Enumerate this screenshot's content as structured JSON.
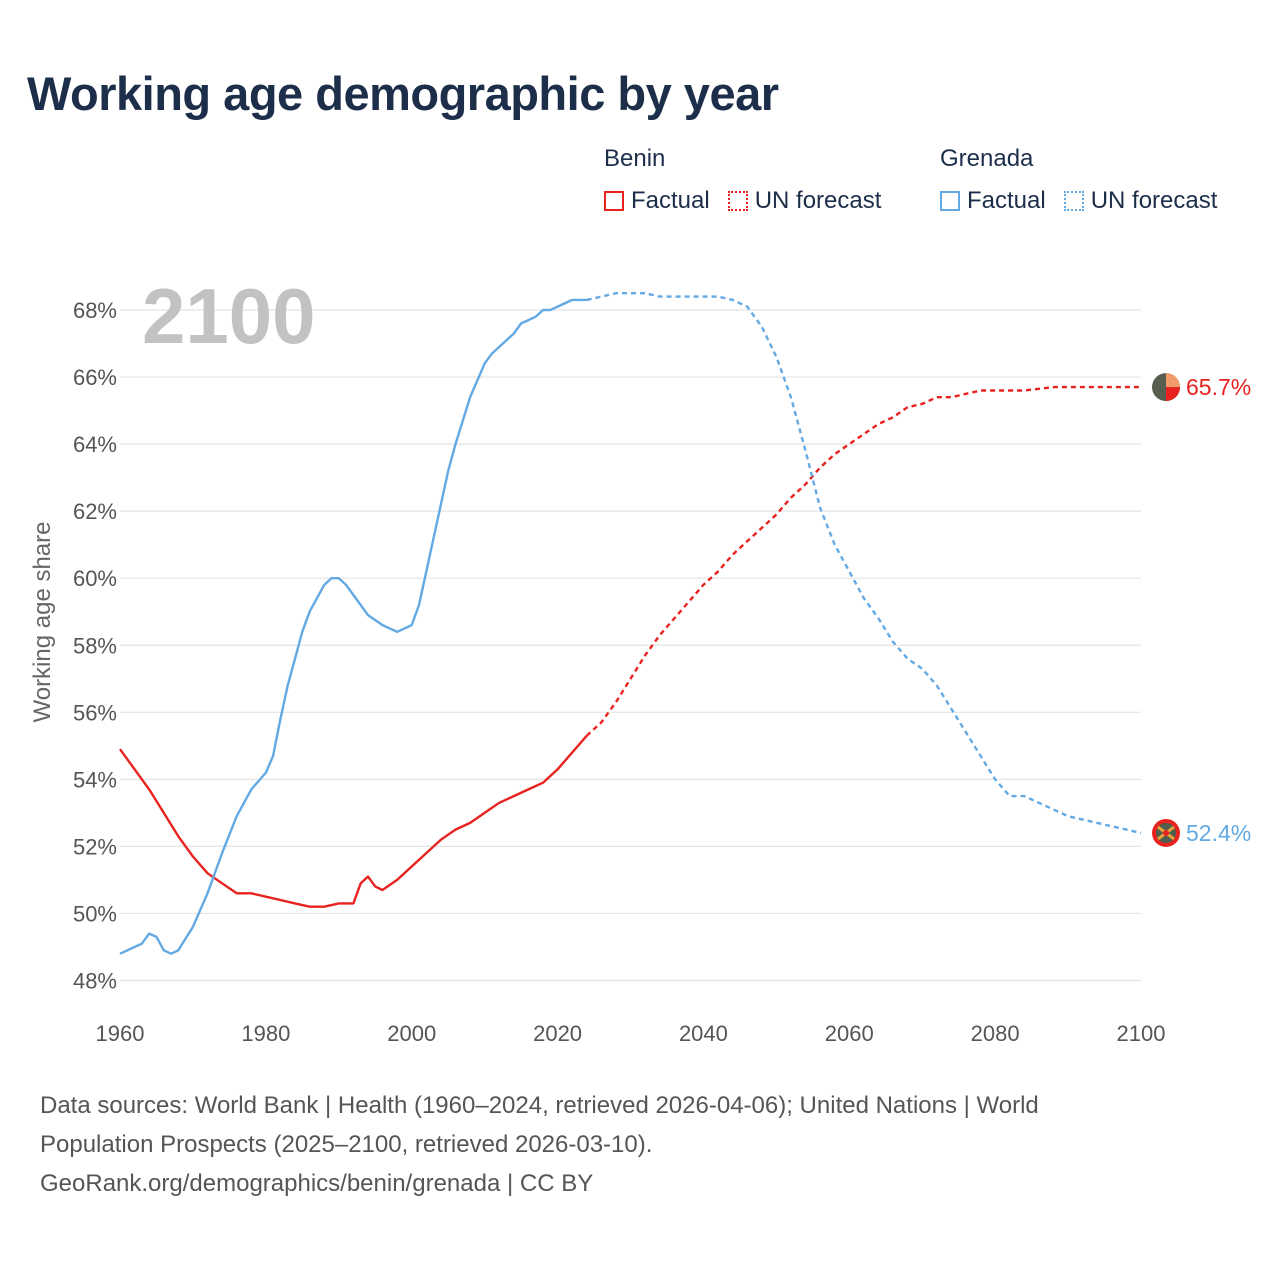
{
  "title": "Working age demographic by year",
  "legend": {
    "groups": [
      {
        "country": "Benin",
        "color": "#e8231f",
        "factual_label": "Factual",
        "forecast_label": "UN forecast"
      },
      {
        "country": "Grenada",
        "color": "#63a9e3",
        "factual_label": "Factual",
        "forecast_label": "UN forecast"
      }
    ]
  },
  "chart_data": {
    "type": "line",
    "title": "Working age demographic by year",
    "xlabel": "",
    "ylabel": "Working age share",
    "year_label": "2100",
    "xlim": [
      1960,
      2100
    ],
    "ylim": [
      47.5,
      68.8
    ],
    "x_ticks": [
      1960,
      1980,
      2000,
      2020,
      2040,
      2060,
      2080,
      2100
    ],
    "y_ticks": [
      48,
      50,
      52,
      54,
      56,
      58,
      60,
      62,
      64,
      66,
      68
    ],
    "y_tick_suffix": "%",
    "grid": true,
    "series": [
      {
        "name": "Benin",
        "color": "#e8231f",
        "end_label": "65.7%",
        "factual": [
          [
            1960,
            54.9
          ],
          [
            1962,
            54.3
          ],
          [
            1964,
            53.7
          ],
          [
            1966,
            53.0
          ],
          [
            1968,
            52.3
          ],
          [
            1970,
            51.7
          ],
          [
            1972,
            51.2
          ],
          [
            1974,
            50.9
          ],
          [
            1976,
            50.6
          ],
          [
            1978,
            50.6
          ],
          [
            1980,
            50.5
          ],
          [
            1982,
            50.4
          ],
          [
            1984,
            50.3
          ],
          [
            1986,
            50.2
          ],
          [
            1988,
            50.2
          ],
          [
            1990,
            50.3
          ],
          [
            1992,
            50.3
          ],
          [
            1993,
            50.9
          ],
          [
            1994,
            51.1
          ],
          [
            1995,
            50.8
          ],
          [
            1996,
            50.7
          ],
          [
            1998,
            51.0
          ],
          [
            2000,
            51.4
          ],
          [
            2002,
            51.8
          ],
          [
            2004,
            52.2
          ],
          [
            2006,
            52.5
          ],
          [
            2008,
            52.7
          ],
          [
            2010,
            53.0
          ],
          [
            2012,
            53.3
          ],
          [
            2014,
            53.5
          ],
          [
            2016,
            53.7
          ],
          [
            2018,
            53.9
          ],
          [
            2020,
            54.3
          ],
          [
            2022,
            54.8
          ],
          [
            2024,
            55.3
          ]
        ],
        "forecast": [
          [
            2024,
            55.3
          ],
          [
            2026,
            55.7
          ],
          [
            2028,
            56.3
          ],
          [
            2030,
            57.0
          ],
          [
            2032,
            57.7
          ],
          [
            2034,
            58.3
          ],
          [
            2036,
            58.8
          ],
          [
            2038,
            59.3
          ],
          [
            2040,
            59.8
          ],
          [
            2042,
            60.2
          ],
          [
            2044,
            60.7
          ],
          [
            2046,
            61.1
          ],
          [
            2048,
            61.5
          ],
          [
            2050,
            61.9
          ],
          [
            2052,
            62.4
          ],
          [
            2054,
            62.8
          ],
          [
            2056,
            63.3
          ],
          [
            2058,
            63.7
          ],
          [
            2060,
            64.0
          ],
          [
            2062,
            64.3
          ],
          [
            2064,
            64.6
          ],
          [
            2066,
            64.8
          ],
          [
            2068,
            65.1
          ],
          [
            2070,
            65.2
          ],
          [
            2072,
            65.4
          ],
          [
            2074,
            65.4
          ],
          [
            2076,
            65.5
          ],
          [
            2078,
            65.6
          ],
          [
            2080,
            65.6
          ],
          [
            2084,
            65.6
          ],
          [
            2088,
            65.7
          ],
          [
            2092,
            65.7
          ],
          [
            2096,
            65.7
          ],
          [
            2100,
            65.7
          ]
        ]
      },
      {
        "name": "Grenada",
        "color": "#63a9e3",
        "end_label": "52.4%",
        "factual": [
          [
            1960,
            48.8
          ],
          [
            1963,
            49.1
          ],
          [
            1964,
            49.4
          ],
          [
            1965,
            49.3
          ],
          [
            1966,
            48.9
          ],
          [
            1967,
            48.8
          ],
          [
            1968,
            48.9
          ],
          [
            1970,
            49.6
          ],
          [
            1972,
            50.6
          ],
          [
            1974,
            51.8
          ],
          [
            1976,
            52.9
          ],
          [
            1978,
            53.7
          ],
          [
            1980,
            54.2
          ],
          [
            1981,
            54.7
          ],
          [
            1982,
            55.8
          ],
          [
            1983,
            56.8
          ],
          [
            1984,
            57.6
          ],
          [
            1985,
            58.4
          ],
          [
            1986,
            59.0
          ],
          [
            1987,
            59.4
          ],
          [
            1988,
            59.8
          ],
          [
            1989,
            60.0
          ],
          [
            1990,
            60.0
          ],
          [
            1991,
            59.8
          ],
          [
            1992,
            59.5
          ],
          [
            1994,
            58.9
          ],
          [
            1996,
            58.6
          ],
          [
            1998,
            58.4
          ],
          [
            2000,
            58.6
          ],
          [
            2001,
            59.2
          ],
          [
            2002,
            60.2
          ],
          [
            2003,
            61.2
          ],
          [
            2004,
            62.2
          ],
          [
            2005,
            63.2
          ],
          [
            2006,
            64.0
          ],
          [
            2008,
            65.4
          ],
          [
            2010,
            66.4
          ],
          [
            2011,
            66.7
          ],
          [
            2012,
            66.9
          ],
          [
            2014,
            67.3
          ],
          [
            2015,
            67.6
          ],
          [
            2016,
            67.7
          ],
          [
            2017,
            67.8
          ],
          [
            2018,
            68.0
          ],
          [
            2019,
            68.0
          ],
          [
            2020,
            68.1
          ],
          [
            2022,
            68.3
          ],
          [
            2024,
            68.3
          ]
        ],
        "forecast": [
          [
            2024,
            68.3
          ],
          [
            2026,
            68.4
          ],
          [
            2028,
            68.5
          ],
          [
            2030,
            68.5
          ],
          [
            2032,
            68.5
          ],
          [
            2034,
            68.4
          ],
          [
            2036,
            68.4
          ],
          [
            2038,
            68.4
          ],
          [
            2040,
            68.4
          ],
          [
            2042,
            68.4
          ],
          [
            2044,
            68.3
          ],
          [
            2046,
            68.1
          ],
          [
            2048,
            67.5
          ],
          [
            2050,
            66.6
          ],
          [
            2052,
            65.4
          ],
          [
            2054,
            63.8
          ],
          [
            2056,
            62.1
          ],
          [
            2058,
            61.0
          ],
          [
            2060,
            60.2
          ],
          [
            2062,
            59.4
          ],
          [
            2064,
            58.8
          ],
          [
            2066,
            58.1
          ],
          [
            2068,
            57.6
          ],
          [
            2070,
            57.3
          ],
          [
            2072,
            56.8
          ],
          [
            2074,
            56.1
          ],
          [
            2076,
            55.4
          ],
          [
            2078,
            54.7
          ],
          [
            2080,
            54.0
          ],
          [
            2082,
            53.5
          ],
          [
            2084,
            53.5
          ],
          [
            2086,
            53.3
          ],
          [
            2088,
            53.1
          ],
          [
            2090,
            52.9
          ],
          [
            2092,
            52.8
          ],
          [
            2094,
            52.7
          ],
          [
            2096,
            52.6
          ],
          [
            2098,
            52.5
          ],
          [
            2100,
            52.4
          ]
        ]
      }
    ]
  },
  "footer": {
    "line1": "Data sources: World Bank | Health (1960–2024, retrieved 2026-04-06); United Nations | World",
    "line2": "Population Prospects (2025–2100, retrieved 2026-03-10).",
    "line3": "GeoRank.org/demographics/benin/grenada | CC BY"
  }
}
